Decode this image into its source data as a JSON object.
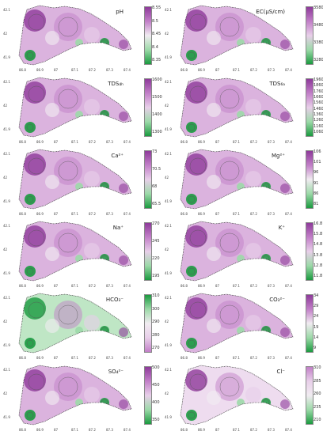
{
  "figure": {
    "panels": [
      {
        "label": "pH",
        "ticks": [
          "8.55",
          "8.5",
          "8.45",
          "8.4",
          "8.35"
        ],
        "tone": "mixed"
      },
      {
        "label": "EC(μS/cm)",
        "ticks": [
          "3580",
          "3480",
          "3380",
          "3280"
        ],
        "tone": "purple"
      },
      {
        "label": "TDS₄ₕ",
        "ticks": [
          "1600",
          "1500",
          "1400",
          "1300"
        ],
        "tone": "purple"
      },
      {
        "label": "TDS₆ₐ",
        "ticks": [
          "1960",
          "1860",
          "1760",
          "1660",
          "1560",
          "1460",
          "1360",
          "1260",
          "1160",
          "1060"
        ],
        "tone": "purple"
      },
      {
        "label": "Ca²⁺",
        "ticks": [
          "73",
          "70.5",
          "68",
          "65.5"
        ],
        "tone": "purple"
      },
      {
        "label": "Mg²⁺",
        "ticks": [
          "106",
          "101",
          "96",
          "91",
          "86",
          "81"
        ],
        "tone": "mixed"
      },
      {
        "label": "Na⁺",
        "ticks": [
          "270",
          "245",
          "220",
          "195"
        ],
        "tone": "purple"
      },
      {
        "label": "K⁺",
        "ticks": [
          "16.8",
          "15.8",
          "14.8",
          "13.8",
          "12.8",
          "11.8"
        ],
        "tone": "purple"
      },
      {
        "label": "HCO₃⁻",
        "ticks": [
          "310",
          "300",
          "290",
          "280",
          "270"
        ],
        "tone": "green"
      },
      {
        "label": "CO₃²⁻",
        "ticks": [
          "34",
          "29",
          "24",
          "19",
          "14",
          "9"
        ],
        "tone": "mixed"
      },
      {
        "label": "SO₄²⁻",
        "ticks": [
          "500",
          "450",
          "400",
          "350"
        ],
        "tone": "purple"
      },
      {
        "label": "Cl⁻",
        "ticks": [
          "310",
          "285",
          "260",
          "235",
          "210"
        ],
        "tone": "light"
      }
    ],
    "x_ticks": [
      "86.8",
      "86.9",
      "87",
      "87.1",
      "87.2",
      "87.3",
      "87.4"
    ],
    "y_ticks": [
      "42.1",
      "42",
      "41.9"
    ]
  },
  "colors": {
    "purple_dark": "#8e3a9a",
    "purple_mid": "#c27fc8",
    "purple_light": "#e8cfe9",
    "green_dark": "#1a9a3f",
    "green_light": "#9cd9a8",
    "neutral": "#f1ecf1"
  }
}
